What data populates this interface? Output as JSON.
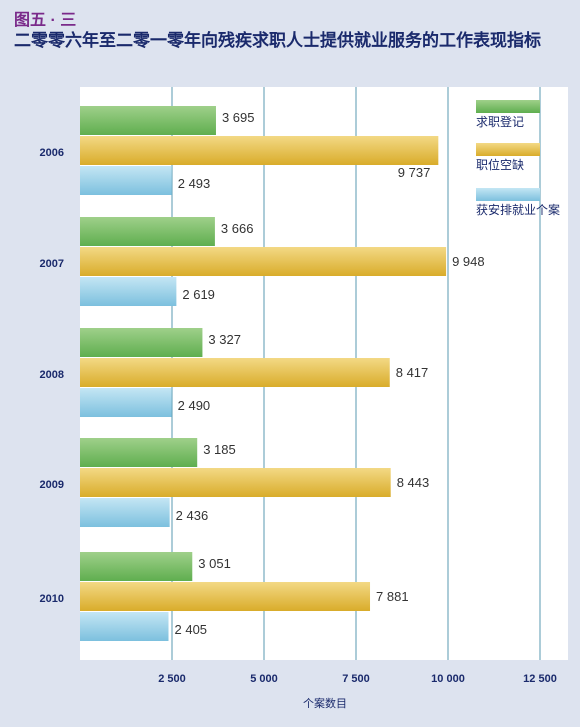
{
  "figure_label": "图五 · 三",
  "title": "二零零六年至二零一零年向残疾求职人士提供就业服务的工作表现指标",
  "colors": {
    "background": "#dde3ef",
    "plot_background": "#ffffff",
    "gridline": "#5a9ab0",
    "label_blue": "#1a2a6c",
    "figure_label_purple": "#7a2a8a"
  },
  "chart_data": {
    "type": "bar",
    "orientation": "horizontal",
    "categories": [
      "2006",
      "2007",
      "2008",
      "2009",
      "2010"
    ],
    "series": [
      {
        "name": "求职登记",
        "color_top": "#9fd08a",
        "color_bottom": "#5fae4f",
        "values": [
          3695,
          3666,
          3327,
          3185,
          3051
        ],
        "labels": [
          "3 695",
          "3 666",
          "3 327",
          "3 185",
          "3 051"
        ]
      },
      {
        "name": "职位空缺",
        "color_top": "#f3d985",
        "color_bottom": "#d9ac2a",
        "values": [
          9737,
          9948,
          8417,
          8443,
          7881
        ],
        "labels": [
          "9 737",
          "9 948",
          "8 417",
          "8 443",
          "7 881"
        ]
      },
      {
        "name": "获安排就业个案",
        "color_top": "#c4e6f4",
        "color_bottom": "#7cc0de",
        "values": [
          2493,
          2619,
          2490,
          2436,
          2405
        ],
        "labels": [
          "2 493",
          "2 619",
          "2 490",
          "2 436",
          "2 405"
        ]
      }
    ],
    "xlabel": "个案数目",
    "xlim": [
      0,
      12500
    ],
    "xticks": [
      2500,
      5000,
      7500,
      10000,
      12500
    ],
    "xtick_labels": [
      "2 500",
      "5 000",
      "7 500",
      "10 000",
      "12 500"
    ],
    "grid": true,
    "legend_position": "top-right"
  }
}
